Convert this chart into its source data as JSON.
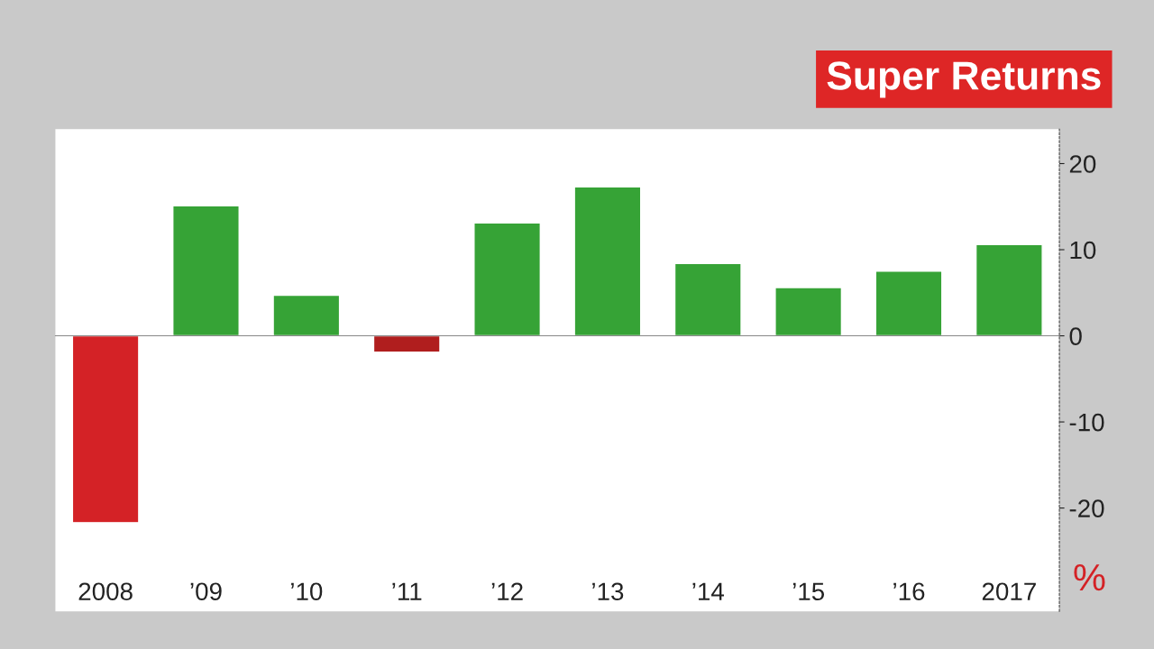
{
  "chart_data": {
    "type": "bar",
    "title": "Super Returns",
    "ylabel": "%",
    "categories": [
      "2008",
      "’09",
      "’10",
      "’11",
      "’12",
      "’13",
      "’14",
      "’15",
      "’16",
      "2017"
    ],
    "values": [
      -21.7,
      15.1,
      4.7,
      -1.9,
      13.1,
      17.3,
      8.4,
      5.6,
      7.5,
      10.6
    ],
    "colors": [
      "#d42226",
      "#36a336",
      "#36a336",
      "#b01e1e",
      "#36a336",
      "#36a336",
      "#36a336",
      "#36a336",
      "#36a336",
      "#36a336"
    ],
    "ylim": [
      -32,
      24
    ],
    "yticks": [
      20,
      10,
      0,
      -10,
      -20
    ],
    "legend": false
  }
}
